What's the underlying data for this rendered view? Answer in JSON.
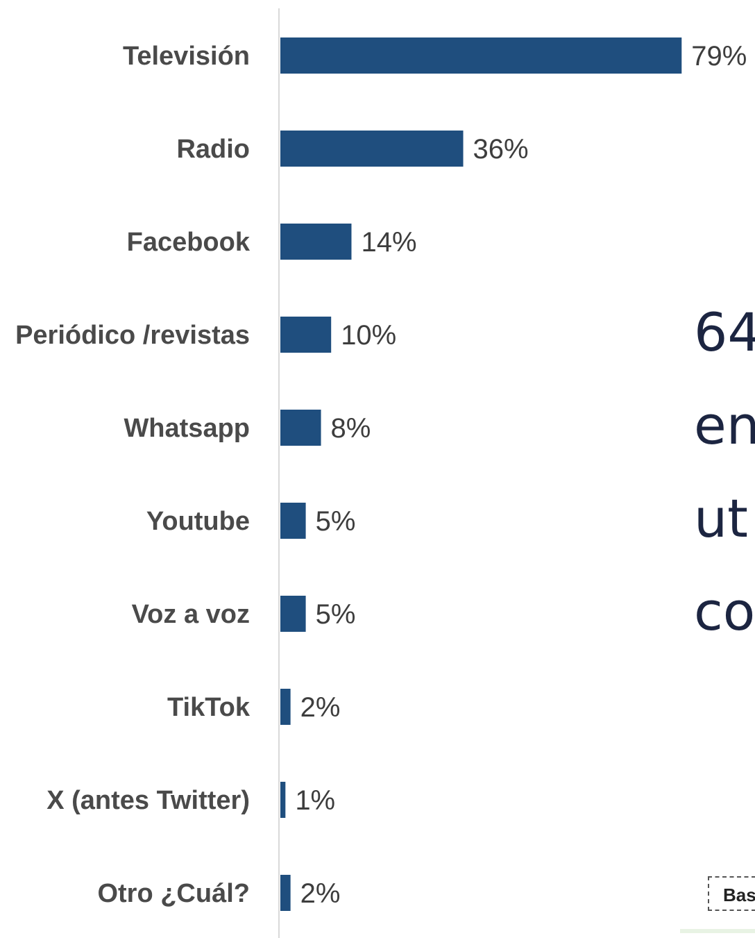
{
  "chart_data": {
    "type": "bar",
    "orientation": "horizontal",
    "title": "",
    "xlabel": "",
    "ylabel": "",
    "xlim": [
      0,
      80
    ],
    "grid": false,
    "bar_color": "#1f4e7e",
    "categories": [
      "Televisión",
      "Radio",
      "Facebook",
      "Periódico /revistas",
      "Whatsapp",
      "Youtube",
      "Voz a voz",
      "TikTok",
      "X (antes Twitter)",
      "Otro ¿Cuál?"
    ],
    "values": [
      79,
      36,
      14,
      10,
      8,
      5,
      5,
      2,
      1,
      2
    ],
    "value_labels": [
      "79%",
      "36%",
      "14%",
      "10%",
      "8%",
      "5%",
      "5%",
      "2%",
      "1%",
      "2%"
    ]
  },
  "side_text": {
    "lines": [
      "64",
      "en",
      "ut",
      "co"
    ],
    "color": "#1c2541"
  },
  "base_note": {
    "text": "Bas"
  }
}
